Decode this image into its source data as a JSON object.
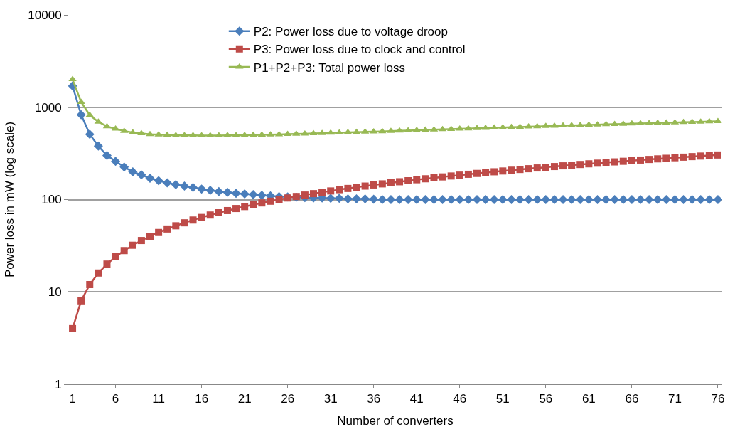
{
  "chart_data": {
    "type": "line",
    "xlabel": "Number of converters",
    "ylabel": "Power loss in mW (log scale)",
    "log": "y",
    "grid": "y",
    "legend": "top",
    "xlim": [
      0.5,
      76.5
    ],
    "xticks": [
      1,
      6,
      11,
      16,
      21,
      26,
      31,
      36,
      41,
      46,
      51,
      56,
      61,
      66,
      71,
      76
    ],
    "ylim": [
      1,
      10000
    ],
    "yticks": [
      1,
      10,
      100,
      1000,
      10000
    ],
    "x": [
      1,
      2,
      3,
      4,
      5,
      6,
      7,
      8,
      9,
      10,
      11,
      12,
      13,
      14,
      15,
      16,
      17,
      18,
      19,
      20,
      21,
      22,
      23,
      24,
      25,
      26,
      27,
      28,
      29,
      30,
      31,
      32,
      33,
      34,
      35,
      36,
      37,
      38,
      39,
      40,
      41,
      42,
      43,
      44,
      45,
      46,
      47,
      48,
      49,
      50,
      51,
      52,
      53,
      54,
      55,
      56,
      57,
      58,
      59,
      60,
      61,
      62,
      63,
      64,
      65,
      66,
      67,
      68,
      69,
      70,
      71,
      72,
      73,
      74,
      75,
      76
    ],
    "series": [
      {
        "name": "P2: Power loss due to voltage droop",
        "color": "#4a7ebb",
        "marker": "diamond",
        "values": [
          1700,
          830,
          510,
          380,
          300,
          260,
          225,
          200,
          185,
          170,
          160,
          152,
          145,
          140,
          135,
          130,
          126,
          122,
          120,
          117,
          115,
          113,
          111,
          110,
          108,
          107,
          106,
          105,
          104,
          104,
          103,
          103,
          102,
          102,
          102,
          101,
          100,
          100,
          100,
          100,
          100,
          100,
          100,
          100,
          100,
          100,
          100,
          100,
          100,
          100,
          100,
          100,
          100,
          100,
          100,
          100,
          100,
          100,
          100,
          100,
          100,
          100,
          100,
          100,
          100,
          100,
          100,
          100,
          100,
          100,
          100,
          100,
          100,
          100,
          100,
          100
        ]
      },
      {
        "name": "P3: Power loss due to clock and control",
        "color": "#be4b48",
        "marker": "square",
        "values": [
          4,
          8,
          12,
          16,
          20,
          24,
          28,
          32,
          36,
          40,
          44,
          48,
          52,
          56,
          60,
          64,
          68,
          72,
          76,
          80,
          84,
          88,
          92,
          96,
          100,
          104,
          108,
          112,
          116,
          120,
          124,
          128,
          132,
          136,
          140,
          144,
          148,
          152,
          156,
          160,
          164,
          168,
          172,
          176,
          180,
          184,
          188,
          192,
          196,
          200,
          204,
          208,
          212,
          216,
          220,
          224,
          228,
          232,
          236,
          240,
          244,
          248,
          252,
          256,
          260,
          264,
          268,
          272,
          276,
          280,
          284,
          288,
          292,
          296,
          300,
          304
        ]
      },
      {
        "name": "P1+P2+P3: Total power loss",
        "color": "#98b954",
        "marker": "triangle",
        "values": [
          2004,
          1138,
          822,
          696,
          620,
          584,
          553,
          532,
          521,
          510,
          504,
          500,
          497,
          496,
          495,
          494,
          494,
          494,
          496,
          497,
          499,
          501,
          503,
          506,
          508,
          511,
          514,
          517,
          520,
          524,
          527,
          531,
          534,
          538,
          542,
          545,
          548,
          552,
          556,
          560,
          564,
          568,
          572,
          576,
          580,
          584,
          588,
          592,
          596,
          600,
          604,
          608,
          612,
          616,
          620,
          624,
          628,
          632,
          636,
          640,
          644,
          648,
          652,
          656,
          660,
          664,
          668,
          672,
          676,
          680,
          684,
          688,
          692,
          696,
          700,
          704
        ]
      }
    ]
  }
}
